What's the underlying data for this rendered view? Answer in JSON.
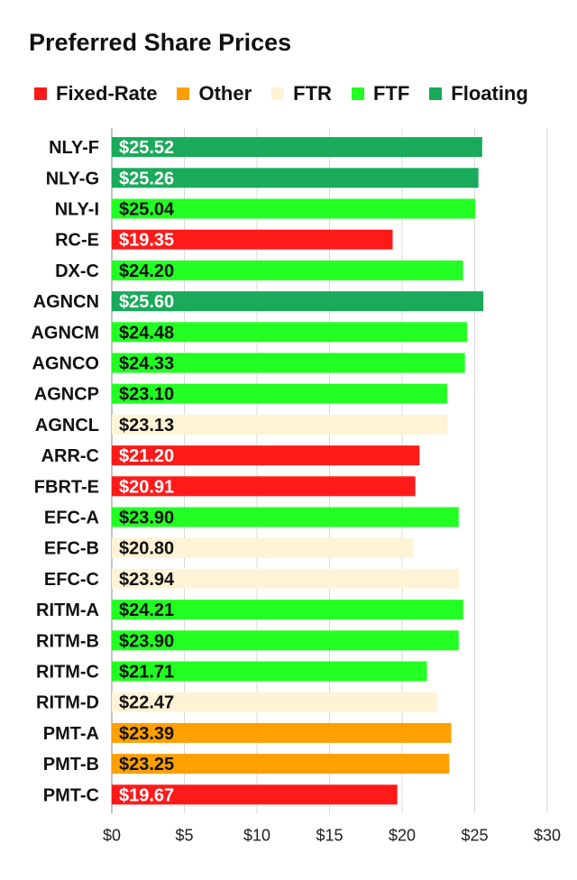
{
  "chart_data": {
    "type": "bar",
    "orientation": "horizontal",
    "title": "Preferred Share Prices",
    "legend_position": "top",
    "series_legend": [
      {
        "name": "Fixed-Rate",
        "color": "#ff1a1a"
      },
      {
        "name": "Other",
        "color": "#ff9f00"
      },
      {
        "name": "FTR",
        "color": "#fff3d6"
      },
      {
        "name": "FTF",
        "color": "#22ff22"
      },
      {
        "name": "Floating",
        "color": "#19aa5a"
      }
    ],
    "categories": [
      "NLY-F",
      "NLY-G",
      "NLY-I",
      "RC-E",
      "DX-C",
      "AGNCN",
      "AGNCM",
      "AGNCO",
      "AGNCP",
      "AGNCL",
      "ARR-C",
      "FBRT-E",
      "EFC-A",
      "EFC-B",
      "EFC-C",
      "RITM-A",
      "RITM-B",
      "RITM-C",
      "RITM-D",
      "PMT-A",
      "PMT-B",
      "PMT-C"
    ],
    "values": [
      25.52,
      25.26,
      25.04,
      19.35,
      24.2,
      25.6,
      24.48,
      24.33,
      23.1,
      23.13,
      21.2,
      20.91,
      23.9,
      20.8,
      23.94,
      24.21,
      23.9,
      21.71,
      22.47,
      23.39,
      23.25,
      19.67
    ],
    "data_labels": [
      "$25.52",
      "$25.26",
      "$25.04",
      "$19.35",
      "$24.20",
      "$25.60",
      "$24.48",
      "$24.33",
      "$23.10",
      "$23.13",
      "$21.20",
      "$20.91",
      "$23.90",
      "$20.80",
      "$23.94",
      "$24.21",
      "$23.90",
      "$21.71",
      "$22.47",
      "$23.39",
      "$23.25",
      "$19.67"
    ],
    "bar_types": [
      "Floating",
      "Floating",
      "FTF",
      "Fixed-Rate",
      "FTF",
      "Floating",
      "FTF",
      "FTF",
      "FTF",
      "FTR",
      "Fixed-Rate",
      "Fixed-Rate",
      "FTF",
      "FTR",
      "FTR",
      "FTF",
      "FTF",
      "FTF",
      "FTR",
      "Other",
      "Other",
      "Fixed-Rate"
    ],
    "x_ticks": [
      0,
      5,
      10,
      15,
      20,
      25,
      30
    ],
    "x_tick_labels": [
      "$0",
      "$5",
      "$10",
      "$15",
      "$20",
      "$25",
      "$30"
    ],
    "xlim": [
      0,
      30
    ],
    "grid": "vertical",
    "xlabel": "",
    "ylabel": ""
  }
}
